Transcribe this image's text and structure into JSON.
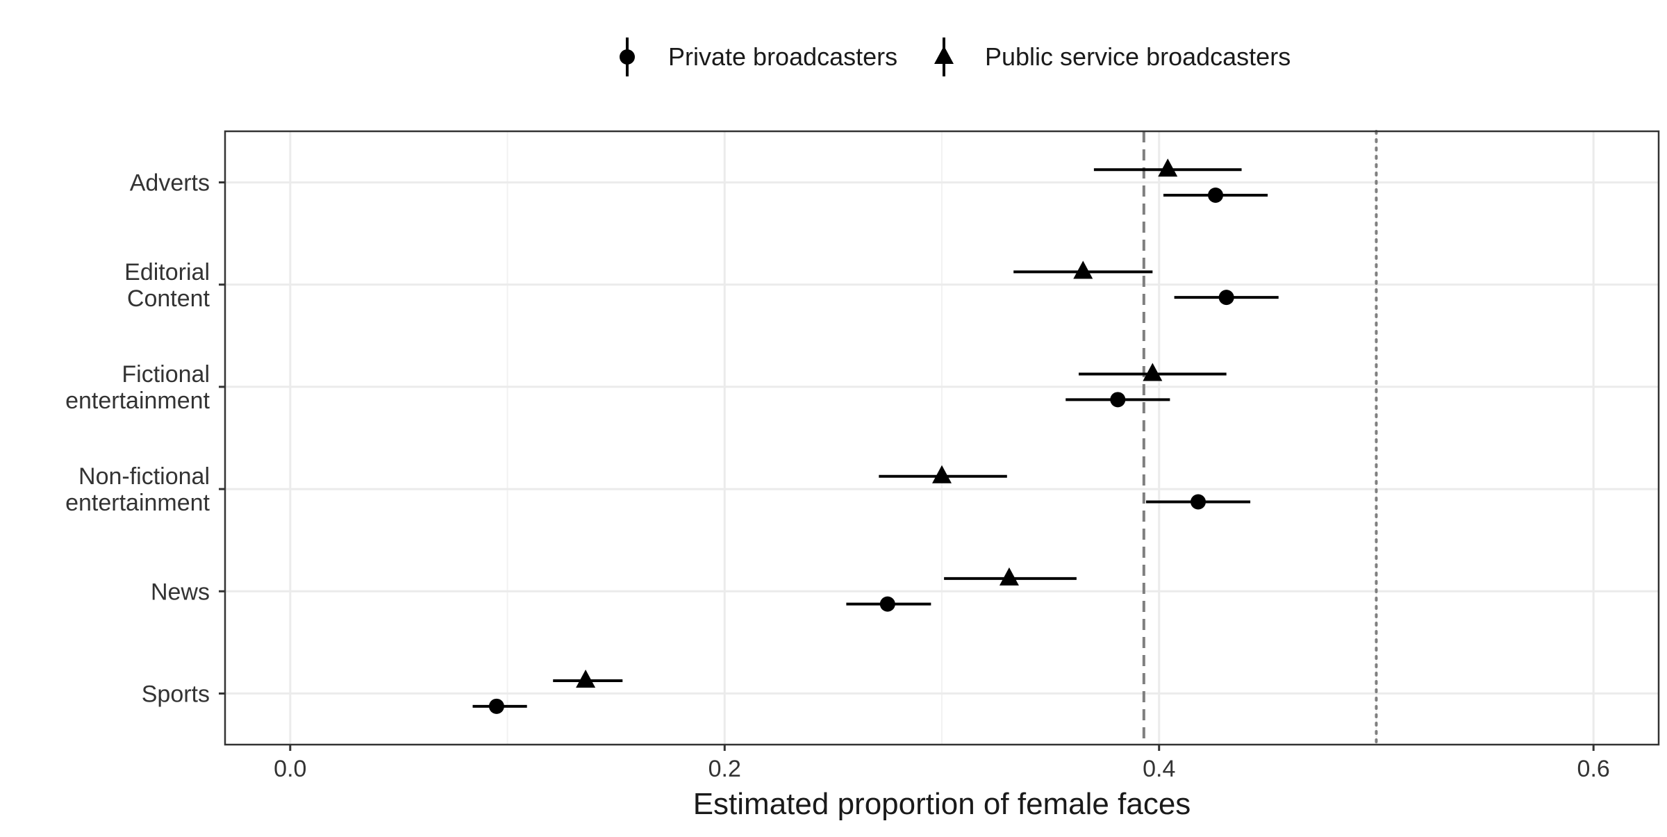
{
  "chart_data": {
    "type": "scatter",
    "subtype": "dot-and-whisker",
    "title": "",
    "xlabel": "Estimated proportion of female faces",
    "ylabel": "",
    "xlim": [
      -0.03,
      0.63
    ],
    "x_ticks": [
      0.0,
      0.2,
      0.4,
      0.6
    ],
    "x_tick_labels": [
      "0.0",
      "0.2",
      "0.4",
      "0.6"
    ],
    "categories": [
      "Adverts",
      "Editorial\nContent",
      "Fictional\nentertainment",
      "Non-fictional\nentertainment",
      "News",
      "Sports"
    ],
    "series": [
      {
        "name": "Private broadcasters",
        "marker": "circle",
        "values": [
          0.426,
          0.431,
          0.381,
          0.418,
          0.275,
          0.095
        ],
        "lower": [
          0.402,
          0.407,
          0.357,
          0.394,
          0.256,
          0.084
        ],
        "upper": [
          0.45,
          0.455,
          0.405,
          0.442,
          0.295,
          0.109
        ]
      },
      {
        "name": "Public service broadcasters",
        "marker": "triangle",
        "values": [
          0.404,
          0.365,
          0.397,
          0.3,
          0.331,
          0.136
        ],
        "lower": [
          0.37,
          0.333,
          0.363,
          0.271,
          0.301,
          0.121
        ],
        "upper": [
          0.438,
          0.397,
          0.431,
          0.33,
          0.362,
          0.153
        ]
      }
    ],
    "reference_lines": [
      {
        "x": 0.393,
        "style": "dashed",
        "color": "#7f7f7f"
      },
      {
        "x": 0.5,
        "style": "dotted",
        "color": "#7f7f7f"
      }
    ],
    "grid": true,
    "legend_position": "top",
    "colors": {
      "points": "#000000",
      "grid": "#ebebeb",
      "panel_border": "#333333"
    }
  }
}
